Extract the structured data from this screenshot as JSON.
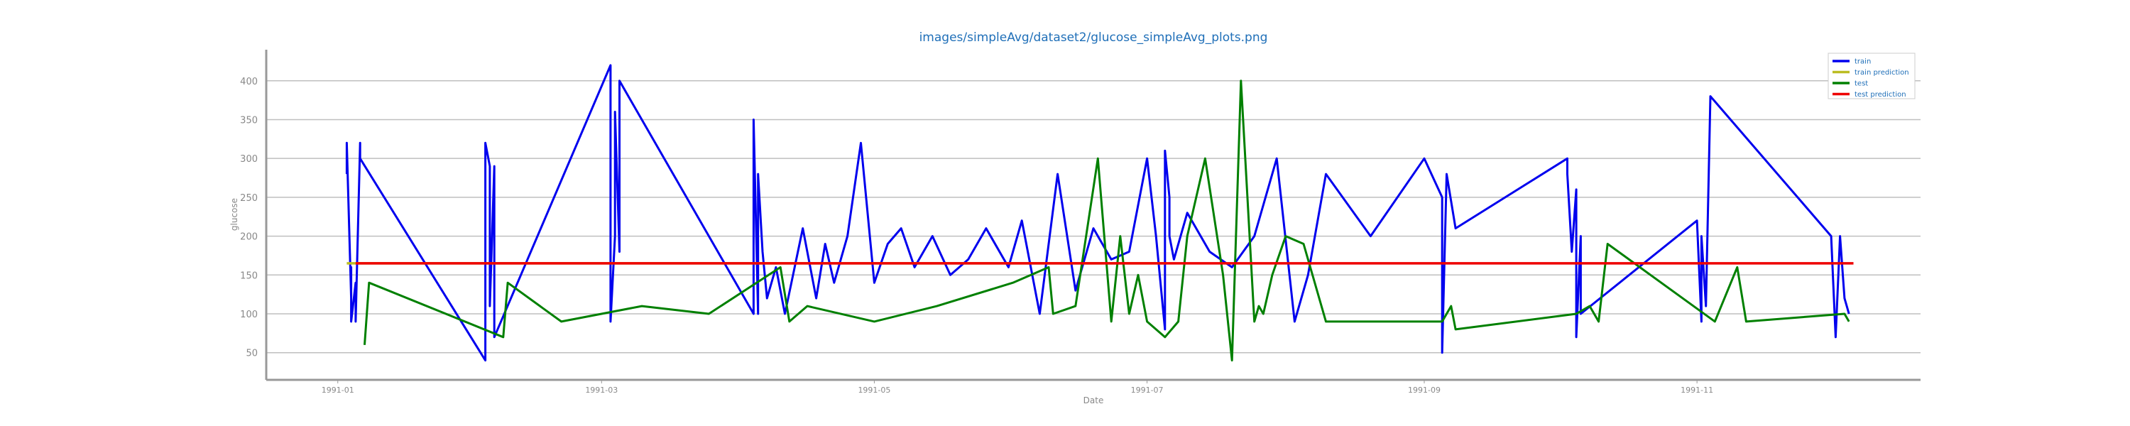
{
  "chart_data": {
    "type": "line",
    "title": "images/simpleAvg/dataset2/glucose_simpleAvg_plots.png",
    "xlabel": "Date",
    "ylabel": "glucose",
    "xlim": [
      "1990-12-16",
      "1991-12-21"
    ],
    "ylim": [
      15,
      440
    ],
    "grid": "horizontal",
    "legend_placement": "top-right",
    "xticks": [
      {
        "date": "1991-01-01",
        "label": "1991-01"
      },
      {
        "date": "1991-03-01",
        "label": "1991-03"
      },
      {
        "date": "1991-05-01",
        "label": "1991-05"
      },
      {
        "date": "1991-07-01",
        "label": "1991-07"
      },
      {
        "date": "1991-09-01",
        "label": "1991-09"
      },
      {
        "date": "1991-11-01",
        "label": "1991-11"
      }
    ],
    "yticks": [
      50,
      100,
      150,
      200,
      250,
      300,
      350,
      400
    ],
    "series": [
      {
        "name": "train",
        "color": "#0000ee",
        "x": [
          "1991-01-03",
          "1991-01-03",
          "1991-01-04",
          "1991-01-04",
          "1991-01-04",
          "1991-01-05",
          "1991-01-05",
          "1991-01-06",
          "1991-01-06",
          "1991-02-03",
          "1991-02-03",
          "1991-02-04",
          "1991-02-04",
          "1991-02-05",
          "1991-02-05",
          "1991-02-05",
          "1991-03-03",
          "1991-03-03",
          "1991-03-04",
          "1991-03-04",
          "1991-03-05",
          "1991-03-05",
          "1991-04-04",
          "1991-04-04",
          "1991-04-05",
          "1991-04-05",
          "1991-04-06",
          "1991-04-07",
          "1991-04-09",
          "1991-04-11",
          "1991-04-15",
          "1991-04-18",
          "1991-04-20",
          "1991-04-22",
          "1991-04-25",
          "1991-04-28",
          "1991-05-01",
          "1991-05-04",
          "1991-05-07",
          "1991-05-10",
          "1991-05-14",
          "1991-05-18",
          "1991-05-22",
          "1991-05-26",
          "1991-05-31",
          "1991-06-03",
          "1991-06-07",
          "1991-06-11",
          "1991-06-15",
          "1991-06-19",
          "1991-06-23",
          "1991-06-27",
          "1991-07-01",
          "1991-07-03",
          "1991-07-05",
          "1991-07-05",
          "1991-07-06",
          "1991-07-06",
          "1991-07-07",
          "1991-07-10",
          "1991-07-15",
          "1991-07-20",
          "1991-07-25",
          "1991-07-30",
          "1991-08-03",
          "1991-08-06",
          "1991-08-10",
          "1991-08-20",
          "1991-09-01",
          "1991-09-05",
          "1991-09-05",
          "1991-09-06",
          "1991-09-08",
          "1991-10-03",
          "1991-10-03",
          "1991-10-04",
          "1991-10-05",
          "1991-10-05",
          "1991-10-06",
          "1991-10-06",
          "1991-11-01",
          "1991-11-02",
          "1991-11-02",
          "1991-11-03",
          "1991-11-04",
          "1991-12-01",
          "1991-12-02",
          "1991-12-03",
          "1991-12-04",
          "1991-12-05"
        ],
        "y": [
          280,
          320,
          120,
          160,
          90,
          140,
          90,
          320,
          300,
          40,
          320,
          290,
          110,
          290,
          100,
          70,
          420,
          90,
          200,
          360,
          180,
          400,
          100,
          350,
          100,
          280,
          180,
          120,
          160,
          100,
          210,
          120,
          190,
          140,
          200,
          320,
          140,
          190,
          210,
          160,
          200,
          150,
          170,
          210,
          160,
          220,
          100,
          280,
          130,
          210,
          170,
          180,
          300,
          200,
          80,
          310,
          250,
          200,
          170,
          230,
          180,
          160,
          200,
          300,
          90,
          150,
          280,
          200,
          300,
          250,
          50,
          280,
          210,
          300,
          280,
          180,
          260,
          70,
          200,
          100,
          220,
          90,
          200,
          110,
          380,
          200,
          70,
          200,
          120,
          100
        ]
      },
      {
        "name": "train prediction",
        "color": "#bcbd22",
        "x": [
          "1991-01-03",
          "1991-07-05"
        ],
        "y": [
          165,
          165
        ]
      },
      {
        "name": "test",
        "color": "#008000",
        "x": [
          "1991-01-07",
          "1991-01-08",
          "1991-02-07",
          "1991-02-08",
          "1991-02-20",
          "1991-03-10",
          "1991-03-25",
          "1991-04-10",
          "1991-04-12",
          "1991-04-16",
          "1991-05-01",
          "1991-05-15",
          "1991-06-01",
          "1991-06-09",
          "1991-06-10",
          "1991-06-15",
          "1991-06-20",
          "1991-06-23",
          "1991-06-25",
          "1991-06-27",
          "1991-06-29",
          "1991-07-01",
          "1991-07-05",
          "1991-07-08",
          "1991-07-10",
          "1991-07-14",
          "1991-07-18",
          "1991-07-20",
          "1991-07-22",
          "1991-07-25",
          "1991-07-26",
          "1991-07-27",
          "1991-07-29",
          "1991-08-01",
          "1991-08-05",
          "1991-08-10",
          "1991-08-12",
          "1991-09-05",
          "1991-09-07",
          "1991-09-08",
          "1991-10-05",
          "1991-10-08",
          "1991-10-10",
          "1991-10-12",
          "1991-11-05",
          "1991-11-10",
          "1991-11-12",
          "1991-12-04",
          "1991-12-05"
        ],
        "y": [
          60,
          140,
          70,
          140,
          90,
          110,
          100,
          160,
          90,
          110,
          90,
          110,
          140,
          160,
          100,
          110,
          300,
          90,
          200,
          100,
          150,
          90,
          70,
          90,
          200,
          300,
          150,
          40,
          400,
          90,
          110,
          100,
          150,
          200,
          190,
          90,
          90,
          90,
          110,
          80,
          100,
          110,
          90,
          190,
          90,
          160,
          90,
          100,
          90
        ]
      },
      {
        "name": "test prediction",
        "color": "#ee0000",
        "x": [
          "1991-01-05",
          "1991-12-06"
        ],
        "y": [
          165,
          165
        ]
      }
    ]
  }
}
